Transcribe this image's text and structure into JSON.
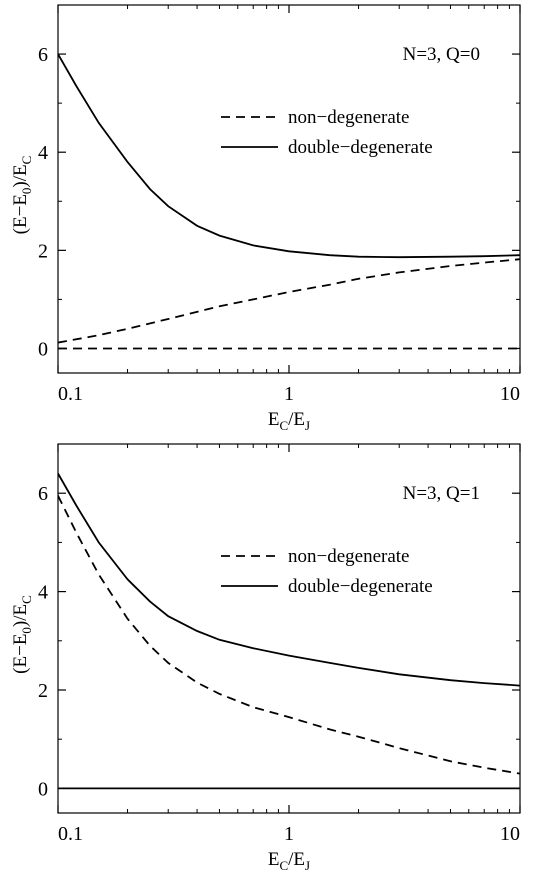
{
  "chart_data": [
    {
      "type": "line",
      "x_scale": "log",
      "xlim": [
        0.1,
        10
      ],
      "ylim": [
        -0.5,
        7
      ],
      "x_ticks": [
        0.1,
        1,
        10
      ],
      "x_tick_labels": [
        "0.1",
        "1",
        "10"
      ],
      "y_ticks": [
        0,
        2,
        4,
        6
      ],
      "y_tick_labels": [
        "0",
        "2",
        "4",
        "6"
      ],
      "ylabel": {
        "base": "(E−E",
        "sub1": "0",
        "mid": ")/E",
        "sub2": "C"
      },
      "xlabel": {
        "base": "E",
        "sub1": "C",
        "mid": "/E",
        "sub2": "J"
      },
      "annotation": "N=3, Q=0",
      "legend_position": "upper-right",
      "legend": [
        {
          "label": "non−degenerate",
          "style": "dashed"
        },
        {
          "label": "double−degenerate",
          "style": "solid"
        }
      ],
      "series": [
        {
          "style": "dashed",
          "x": [
            0.1,
            10
          ],
          "y": [
            0,
            0
          ]
        },
        {
          "style": "dashed",
          "x": [
            0.1,
            0.15,
            0.2,
            0.3,
            0.5,
            0.7,
            1,
            1.5,
            2,
            3,
            5,
            7,
            10
          ],
          "y": [
            0.12,
            0.27,
            0.4,
            0.6,
            0.86,
            1.0,
            1.15,
            1.3,
            1.42,
            1.55,
            1.68,
            1.75,
            1.82
          ]
        },
        {
          "style": "solid",
          "x": [
            0.1,
            0.12,
            0.15,
            0.2,
            0.25,
            0.3,
            0.4,
            0.5,
            0.7,
            1,
            1.5,
            2,
            3,
            5,
            7,
            10
          ],
          "y": [
            6.0,
            5.35,
            4.6,
            3.8,
            3.25,
            2.9,
            2.5,
            2.3,
            2.1,
            1.98,
            1.9,
            1.87,
            1.86,
            1.87,
            1.88,
            1.9
          ]
        }
      ]
    },
    {
      "type": "line",
      "x_scale": "log",
      "xlim": [
        0.1,
        10
      ],
      "ylim": [
        -0.5,
        7
      ],
      "x_ticks": [
        0.1,
        1,
        10
      ],
      "x_tick_labels": [
        "0.1",
        "1",
        "10"
      ],
      "y_ticks": [
        0,
        2,
        4,
        6
      ],
      "y_tick_labels": [
        "0",
        "2",
        "4",
        "6"
      ],
      "ylabel": {
        "base": "(E−E",
        "sub1": "0",
        "mid": ")/E",
        "sub2": "C"
      },
      "xlabel": {
        "base": "E",
        "sub1": "C",
        "mid": "/E",
        "sub2": "J"
      },
      "annotation": "N=3, Q=1",
      "legend_position": "upper-right",
      "legend": [
        {
          "label": "non−degenerate",
          "style": "dashed"
        },
        {
          "label": "double−degenerate",
          "style": "solid"
        }
      ],
      "series": [
        {
          "style": "solid",
          "x": [
            0.1,
            10
          ],
          "y": [
            0,
            0
          ]
        },
        {
          "style": "dashed",
          "x": [
            0.1,
            0.12,
            0.15,
            0.2,
            0.25,
            0.3,
            0.4,
            0.5,
            0.7,
            1,
            1.5,
            2,
            3,
            5,
            7,
            10
          ],
          "y": [
            5.95,
            5.2,
            4.35,
            3.45,
            2.9,
            2.55,
            2.15,
            1.92,
            1.65,
            1.45,
            1.2,
            1.05,
            0.82,
            0.55,
            0.42,
            0.3
          ]
        },
        {
          "style": "solid",
          "x": [
            0.1,
            0.12,
            0.15,
            0.2,
            0.25,
            0.3,
            0.4,
            0.5,
            0.7,
            1,
            1.5,
            2,
            3,
            5,
            7,
            10
          ],
          "y": [
            6.4,
            5.75,
            5.0,
            4.25,
            3.8,
            3.5,
            3.2,
            3.02,
            2.85,
            2.7,
            2.55,
            2.45,
            2.32,
            2.2,
            2.14,
            2.09
          ]
        }
      ]
    }
  ]
}
